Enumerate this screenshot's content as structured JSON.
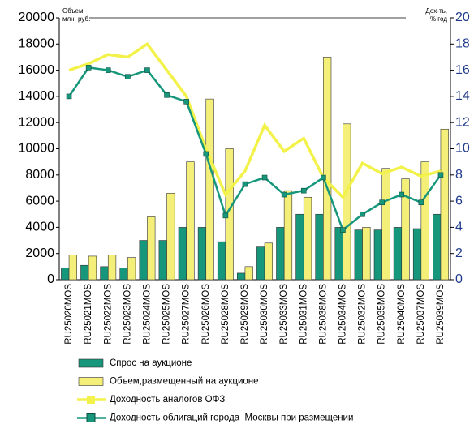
{
  "chart_data": {
    "type": "bar_line",
    "y_label": [
      "Объем,",
      "млн. руб."
    ],
    "y2_label": [
      "Дох-ть,",
      "% год"
    ],
    "categories": [
      "RU25020MOS",
      "RU25021MOS",
      "RU25022MOS",
      "RU25023MOS",
      "RU25024MOS",
      "RU25025MOS",
      "RU25027MOS",
      "RU25026MOS",
      "RU25028MOS",
      "RU25029MOS",
      "RU25030MOS",
      "RU25033MOS",
      "RU25031MOS",
      "RU25038MOS",
      "RU25034MOS",
      "RU25032MOS",
      "RU25035MOS",
      "RU25040MOS",
      "RU25037MOS",
      "RU25039MOS"
    ],
    "series": [
      {
        "name": "Спрос на аукционе",
        "kind": "bar",
        "color": "#16977c",
        "values": [
          900,
          1100,
          1000,
          900,
          3000,
          3000,
          4000,
          4000,
          2900,
          500,
          2500,
          4000,
          5000,
          5000,
          4000,
          3800,
          3800,
          4000,
          3900,
          5000
        ]
      },
      {
        "name": "Объем,размещенный на аукционе",
        "kind": "bar",
        "color": "#f4ef78",
        "values": [
          1900,
          1800,
          1900,
          1700,
          4800,
          6600,
          9000,
          13800,
          10000,
          1000,
          2800,
          6800,
          6300,
          17000,
          11900,
          4000,
          8500,
          7700,
          9000,
          11500
        ]
      },
      {
        "name": "Доходность аналогов ОФЗ",
        "kind": "line",
        "axis": "y2",
        "color": "#f2f24a",
        "values": [
          16,
          16.5,
          17.2,
          17,
          18,
          16,
          14,
          10,
          6.5,
          8.3,
          11.8,
          9.8,
          10.8,
          7.8,
          6.3,
          8.9,
          8.1,
          8.6,
          7.9,
          8.3
        ]
      },
      {
        "name": "Доходность облигаций города  Москвы при размещении",
        "kind": "line",
        "axis": "y2",
        "color": "#16977c",
        "values": [
          14,
          16.2,
          16,
          15.5,
          16,
          14.1,
          13.6,
          9.6,
          4.9,
          7.3,
          7.8,
          6.5,
          6.8,
          7.8,
          3.8,
          5,
          5.9,
          6.5,
          5.9,
          8
        ]
      }
    ],
    "ylim": [
      0,
      20000
    ],
    "yticks": [
      0,
      2000,
      4000,
      6000,
      8000,
      10000,
      12000,
      14000,
      16000,
      18000,
      20000
    ],
    "y2lim": [
      0,
      20
    ],
    "y2ticks": [
      0,
      2,
      4,
      6,
      8,
      10,
      12,
      14,
      16,
      18,
      20
    ]
  }
}
